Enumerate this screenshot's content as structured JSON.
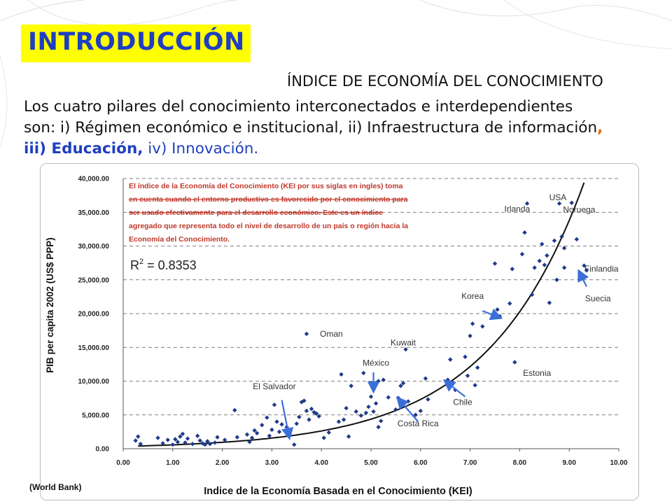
{
  "slide": {
    "title": "INTRODUCCIÓN",
    "subtitle": "ÍNDICE DE ECONOMÍA DEL CONOCIMIENTO",
    "body_line1": "Los cuatro pilares del conocimiento interconectados e interdependientes",
    "body_line2_text": "son: i) Régimen económico e institucional, ii) Infraestructura de información",
    "body_line2_comma": ",",
    "body_line3_a": "iii) ",
    "body_line3_b": "Educación,",
    "body_line3_c": " iv) Innovación.",
    "source": "(World Bank)"
  },
  "colors": {
    "title_bg": "#ffff00",
    "title_text": "#1f3fc0",
    "points": "#1f3a8a",
    "arrows": "#3a6fd8",
    "note_text": "#c0392b"
  },
  "chart_data": {
    "type": "scatter",
    "xlabel": "Indice de la Economía Basada en el Conocimiento (KEI)",
    "ylabel": "PIB per capita 2002 (US$ PPP)",
    "xlim": [
      0,
      10
    ],
    "ylim": [
      0,
      40000
    ],
    "x_ticks": [
      "0.00",
      "1.00",
      "2.00",
      "3.00",
      "4.00",
      "5.00",
      "6.00",
      "7.00",
      "8.00",
      "9.00",
      "10.00"
    ],
    "y_ticks": [
      "0.00",
      "5,000.00",
      "10,000.00",
      "15,000.00",
      "20,000.00",
      "25,000.00",
      "30,000.00",
      "35,000.00",
      "40,000.00"
    ],
    "grid": "horizontal dashed",
    "r_squared_label": "R",
    "r_squared_value": " = 0.8353",
    "annotation": [
      "El índice de la Economía del Conocimiento (KEI por sus siglas en ingles) toma",
      "en cuenta cuando el entorno productivo es favorecido por el conocimiento para",
      "ser usado efectivamente para el desarrollo económico. Este es un índice",
      "agregado que representa todo el nivel de desarrollo de un país o región hacia la",
      "Economía del Conocimiento."
    ],
    "labels": [
      {
        "text": "USA",
        "x": 8.77,
        "y": 36800
      },
      {
        "text": "Irlanda",
        "x": 7.95,
        "y": 35100
      },
      {
        "text": "Noruega",
        "x": 9.2,
        "y": 35000
      },
      {
        "text": "Finlandia",
        "x": 9.65,
        "y": 26200
      },
      {
        "text": "Suecia",
        "x": 9.58,
        "y": 21800
      },
      {
        "text": "Korea",
        "x": 7.05,
        "y": 22200
      },
      {
        "text": "Oman",
        "x": 4.2,
        "y": 16600
      },
      {
        "text": "Kuwait",
        "x": 5.65,
        "y": 15300
      },
      {
        "text": "México",
        "x": 5.1,
        "y": 12300
      },
      {
        "text": "Estonia",
        "x": 8.35,
        "y": 10800
      },
      {
        "text": "El Salvador",
        "x": 3.05,
        "y": 8800
      },
      {
        "text": "Chile",
        "x": 6.85,
        "y": 6500
      },
      {
        "text": "Costa Rica",
        "x": 5.95,
        "y": 3300
      }
    ],
    "arrows": [
      {
        "from": [
          7.25,
          20400
        ],
        "to": [
          7.6,
          19400
        ]
      },
      {
        "from": [
          9.35,
          24000
        ],
        "to": [
          9.2,
          26200
        ]
      },
      {
        "from": [
          5.05,
          11300
        ],
        "to": [
          5.05,
          8600
        ]
      },
      {
        "from": [
          3.2,
          7200
        ],
        "to": [
          3.35,
          1700
        ]
      },
      {
        "from": [
          6.9,
          7700
        ],
        "to": [
          6.5,
          10000
        ]
      },
      {
        "from": [
          5.95,
          4000
        ],
        "to": [
          5.55,
          7400
        ]
      }
    ],
    "trend_curve": "exponential",
    "points": [
      [
        0.25,
        1200
      ],
      [
        0.3,
        1800
      ],
      [
        0.35,
        700
      ],
      [
        0.7,
        1600
      ],
      [
        0.8,
        800
      ],
      [
        0.9,
        1300
      ],
      [
        1.0,
        600
      ],
      [
        1.05,
        1400
      ],
      [
        1.1,
        1000
      ],
      [
        1.15,
        1800
      ],
      [
        1.2,
        2200
      ],
      [
        1.25,
        900
      ],
      [
        1.3,
        1500
      ],
      [
        1.4,
        700
      ],
      [
        1.5,
        1900
      ],
      [
        1.55,
        1200
      ],
      [
        1.6,
        800
      ],
      [
        1.65,
        600
      ],
      [
        1.7,
        1100
      ],
      [
        1.75,
        700
      ],
      [
        1.85,
        900
      ],
      [
        1.9,
        1700
      ],
      [
        2.05,
        1300
      ],
      [
        2.25,
        5700
      ],
      [
        2.3,
        1700
      ],
      [
        2.5,
        2100
      ],
      [
        2.55,
        1000
      ],
      [
        2.6,
        1600
      ],
      [
        2.65,
        2700
      ],
      [
        2.7,
        2300
      ],
      [
        2.8,
        3500
      ],
      [
        2.9,
        4600
      ],
      [
        2.95,
        1900
      ],
      [
        3.0,
        2800
      ],
      [
        3.05,
        6500
      ],
      [
        3.1,
        4000
      ],
      [
        3.15,
        2500
      ],
      [
        3.2,
        3600
      ],
      [
        3.3,
        3200
      ],
      [
        3.35,
        2300
      ],
      [
        3.45,
        600
      ],
      [
        3.5,
        3700
      ],
      [
        3.55,
        4700
      ],
      [
        3.6,
        6900
      ],
      [
        3.65,
        7100
      ],
      [
        3.7,
        5600
      ],
      [
        3.75,
        4300
      ],
      [
        3.8,
        5900
      ],
      [
        3.85,
        5400
      ],
      [
        3.9,
        5200
      ],
      [
        3.95,
        4800
      ],
      [
        3.7,
        17000
      ],
      [
        4.05,
        1600
      ],
      [
        4.15,
        2400
      ],
      [
        4.35,
        4000
      ],
      [
        4.4,
        11000
      ],
      [
        4.45,
        4300
      ],
      [
        4.5,
        6000
      ],
      [
        4.55,
        1800
      ],
      [
        4.6,
        9300
      ],
      [
        4.7,
        5500
      ],
      [
        4.8,
        4900
      ],
      [
        4.85,
        11200
      ],
      [
        4.9,
        5300
      ],
      [
        4.95,
        6200
      ],
      [
        5.0,
        7700
      ],
      [
        5.05,
        5500
      ],
      [
        5.1,
        6700
      ],
      [
        5.15,
        3200
      ],
      [
        5.15,
        10000
      ],
      [
        5.2,
        4100
      ],
      [
        5.25,
        10200
      ],
      [
        5.35,
        7600
      ],
      [
        5.5,
        5800
      ],
      [
        5.55,
        7500
      ],
      [
        5.6,
        9300
      ],
      [
        5.65,
        9700
      ],
      [
        5.7,
        14700
      ],
      [
        5.75,
        7000
      ],
      [
        5.9,
        5000
      ],
      [
        6.0,
        5600
      ],
      [
        6.1,
        10400
      ],
      [
        6.15,
        7300
      ],
      [
        6.55,
        10200
      ],
      [
        6.6,
        13200
      ],
      [
        6.7,
        8700
      ],
      [
        6.9,
        13600
      ],
      [
        6.95,
        10800
      ],
      [
        7.0,
        16700
      ],
      [
        7.05,
        18500
      ],
      [
        7.1,
        9400
      ],
      [
        7.15,
        12000
      ],
      [
        7.25,
        18100
      ],
      [
        7.5,
        27400
      ],
      [
        7.55,
        20600
      ],
      [
        7.6,
        19600
      ],
      [
        7.8,
        21500
      ],
      [
        7.85,
        26600
      ],
      [
        7.9,
        12800
      ],
      [
        8.05,
        28800
      ],
      [
        8.1,
        32000
      ],
      [
        8.15,
        36300
      ],
      [
        8.25,
        22800
      ],
      [
        8.3,
        26800
      ],
      [
        8.4,
        27800
      ],
      [
        8.45,
        30300
      ],
      [
        8.5,
        27200
      ],
      [
        8.55,
        28600
      ],
      [
        8.6,
        21600
      ],
      [
        8.7,
        30800
      ],
      [
        8.75,
        25000
      ],
      [
        8.8,
        36300
      ],
      [
        8.85,
        31400
      ],
      [
        8.9,
        29700
      ],
      [
        9.05,
        36400
      ],
      [
        9.15,
        31000
      ],
      [
        9.3,
        27100
      ],
      [
        9.35,
        26400
      ],
      [
        8.9,
        26800
      ]
    ]
  }
}
